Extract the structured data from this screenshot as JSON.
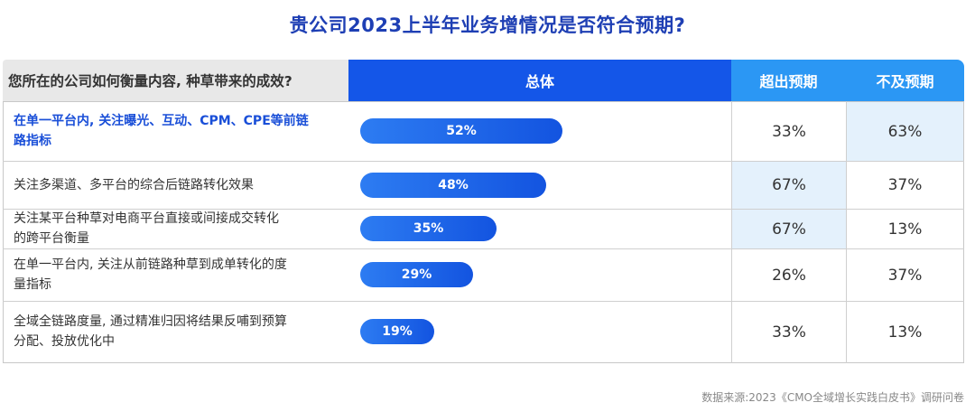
{
  "title": "贵公司2023上半年业务增情况是否符合预期?",
  "headers": {
    "question": "您所在的公司如何衡量内容, 种草带来的成效?",
    "total": "总体",
    "exceed": "超出预期",
    "below": "不及预期"
  },
  "chart_data": {
    "type": "bar",
    "categories": [
      "在单一平台内, 关注曝光、互动、CPM、CPE等前链路指标",
      "关注多渠道、多平台的综合后链路转化效果",
      "关注某平台种草对电商平台直接或间接成交转化的跨平台衡量",
      "在单一平台内, 关注从前链路种草到成单转化的度量指标",
      "全域全链路度量, 通过精准归因将结果反哺到预算分配、投放优化中"
    ],
    "series": [
      {
        "name": "总体",
        "values": [
          52,
          48,
          35,
          29,
          19
        ]
      },
      {
        "name": "超出预期",
        "values": [
          33,
          67,
          67,
          26,
          33
        ]
      },
      {
        "name": "不及预期",
        "values": [
          63,
          37,
          13,
          37,
          13
        ]
      }
    ],
    "total_labels": [
      "52%",
      "48%",
      "35%",
      "29%",
      "19%"
    ],
    "exceed_labels": [
      "33%",
      "67%",
      "67%",
      "26%",
      "33%"
    ],
    "below_labels": [
      "63%",
      "37%",
      "13%",
      "37%",
      "13%"
    ],
    "ylim": [
      0,
      100
    ]
  },
  "rows": [
    {
      "label_line1": "在单一平台内, 关注曝光、互动、CPM、CPE等前链",
      "label_line2": "路指标"
    },
    {
      "label_line1": "关注多渠道、多平台的综合后链路转化效果",
      "label_line2": ""
    },
    {
      "label_line1": "关注某平台种草对电商平台直接或间接成交转化",
      "label_line2": "的跨平台衡量"
    },
    {
      "label_line1": "在单一平台内, 关注从前链路种草到成单转化的度",
      "label_line2": "量指标"
    },
    {
      "label_line1": "全域全链路度量, 通过精准归因将结果反哺到预算",
      "label_line2": "分配、投放优化中"
    }
  ],
  "colors": {
    "bar": "#1456e8",
    "header_total": "#1456e8",
    "header_cols": "#2b97f4",
    "highlight_cell": "#e4f1fc",
    "title": "#1e3fb4"
  },
  "source": "数据来源:2023《CMO全域增长实践白皮书》调研问卷"
}
